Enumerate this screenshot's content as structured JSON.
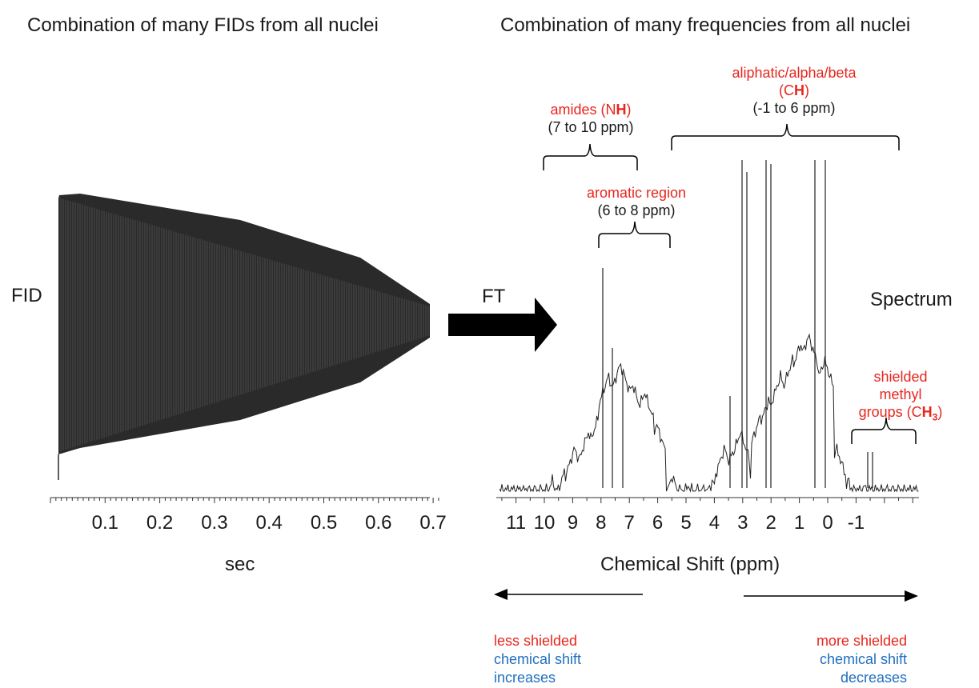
{
  "headings": {
    "left": "Combination of many FIDs from all nuclei",
    "right": "Combination of many frequencies from all nuclei"
  },
  "fid_panel": {
    "label": "FID",
    "x_ticks": [
      "0.1",
      "0.2",
      "0.3",
      "0.4",
      "0.5",
      "0.6",
      "0.7"
    ],
    "x_label": "sec"
  },
  "transform": {
    "label": "FT"
  },
  "spectrum_panel": {
    "label": "Spectrum",
    "x_ticks": [
      "11",
      "10",
      "9",
      "8",
      "7",
      "6",
      "5",
      "4",
      "3",
      "2",
      "1",
      "0",
      "-1"
    ],
    "x_label": "Chemical Shift (ppm)"
  },
  "regions": {
    "amides": {
      "name_prefix": "amides (N",
      "name_bold": "H",
      "name_suffix": ")",
      "range": "(7 to 10 ppm)"
    },
    "aromatic": {
      "name": "aromatic  region",
      "range": "(6 to 8 ppm)"
    },
    "aliphatic": {
      "name": "aliphatic/alpha/beta",
      "group_prefix": "(C",
      "group_bold": "H",
      "group_suffix": ")",
      "range": "(-1 to 6 ppm)"
    },
    "methyl": {
      "line1": "shielded",
      "line2": "methyl",
      "line3_prefix": "groups (C",
      "line3_bold": "H",
      "line3_sub": "3",
      "line3_suffix": ")"
    }
  },
  "direction": {
    "left": {
      "line1": "less shielded",
      "line2": "chemical shift",
      "line3": "increases"
    },
    "right": {
      "line1": "more shielded",
      "line2": "chemical shift",
      "line3": "decreases"
    }
  },
  "colors": {
    "annotation_red": "#e8261e",
    "annotation_blue": "#1f6fbf",
    "trace": "#1a1a1a"
  }
}
